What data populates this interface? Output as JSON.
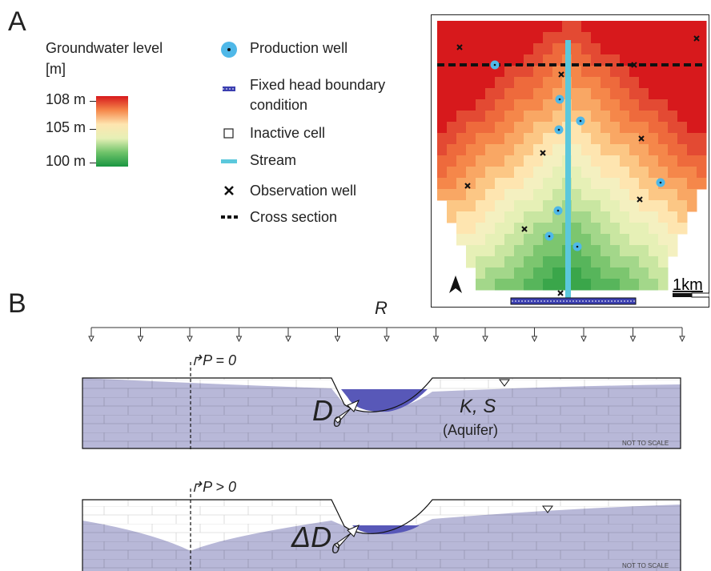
{
  "panels": {
    "a": "A",
    "b": "B"
  },
  "colorbar": {
    "title_line1": "Groundwater level",
    "title_line2": "[m]",
    "ticks": [
      "108 m",
      "105 m",
      "100 m"
    ],
    "colors": [
      "#d7191c",
      "#f5874a",
      "#fee5b0",
      "#e6f0b6",
      "#6fc36a",
      "#1a9641"
    ]
  },
  "legend": {
    "production_well": "Production well",
    "fixed_head_line1": "Fixed head boundary",
    "fixed_head_line2": "condition",
    "inactive_cell": "Inactive cell",
    "stream": "Stream",
    "observation_well": "Observation well",
    "cross_section": "Cross section"
  },
  "map": {
    "scale_label": "1km",
    "north_icon": "north-arrow-icon",
    "stream_color": "#5bc8dc",
    "well_color": "#4fb8e8",
    "boundary_color": "#3b3fb0"
  },
  "section": {
    "recharge": "R",
    "p0": "P = 0",
    "p_pos": "P > 0",
    "d0_main": "D",
    "d0_sub": "0",
    "delta_d0_main": "ΔD",
    "delta_d0_sub": "0",
    "aquifer_params": "K, S",
    "aquifer_label": "(Aquifer)",
    "not_to_scale": "NOT TO SCALE",
    "aquifer_color": "#b8b8d8",
    "stream_fill": "#5858b8"
  }
}
